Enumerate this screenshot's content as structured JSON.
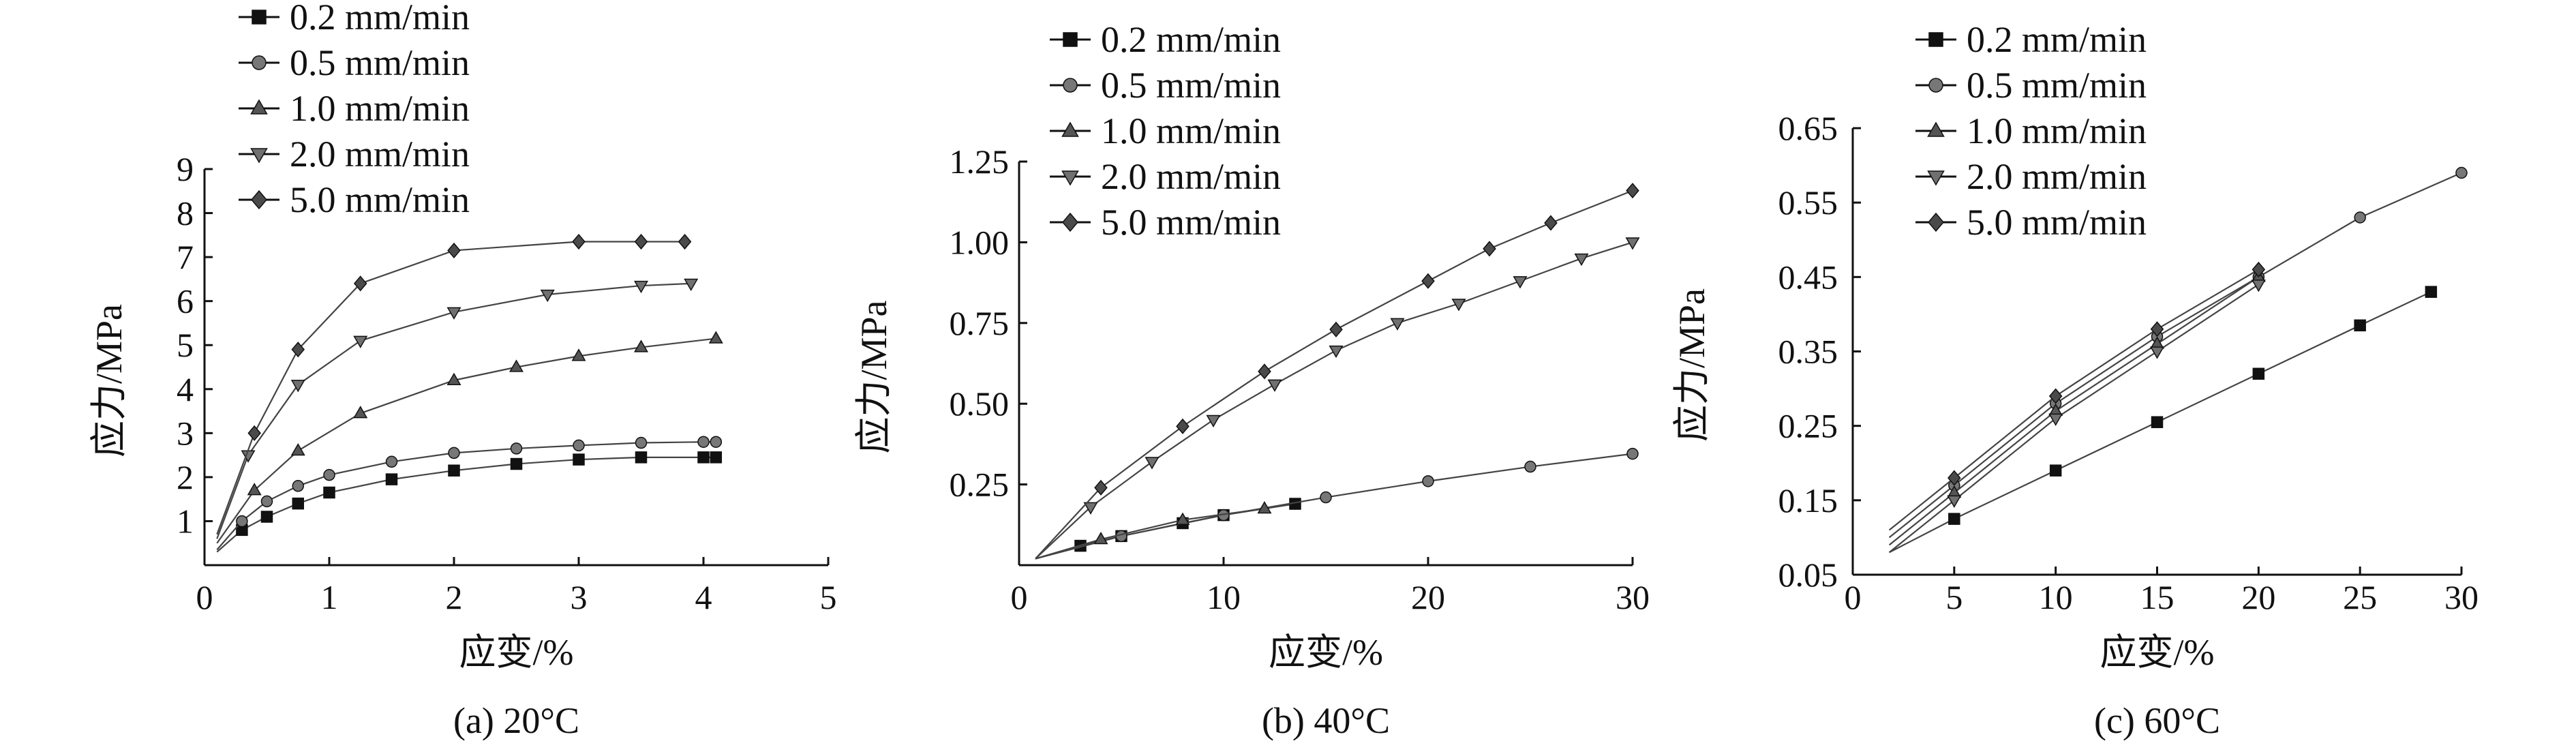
{
  "chart_data": [
    {
      "type": "line",
      "caption": "(a) 20°C",
      "xlabel": "应变/%",
      "ylabel": "应力/MPa",
      "xlim": [
        0,
        5
      ],
      "ylim": [
        0,
        9
      ],
      "xticks": [
        "0",
        "1",
        "2",
        "3",
        "4",
        "5"
      ],
      "yticks": [
        "1",
        "2",
        "3",
        "4",
        "5",
        "6",
        "7",
        "8",
        "9"
      ],
      "legend": "top-left",
      "series": [
        {
          "name": "0.2 mm/min",
          "marker": "square",
          "x": [
            0.1,
            0.3,
            0.5,
            0.75,
            1.0,
            1.5,
            2.0,
            2.5,
            3.0,
            3.5,
            4.0,
            4.1
          ],
          "y": [
            0.3,
            0.8,
            1.1,
            1.4,
            1.65,
            1.95,
            2.15,
            2.3,
            2.4,
            2.45,
            2.45,
            2.45
          ]
        },
        {
          "name": "0.5 mm/min",
          "marker": "circle",
          "x": [
            0.1,
            0.3,
            0.5,
            0.75,
            1.0,
            1.5,
            2.0,
            2.5,
            3.0,
            3.5,
            4.0,
            4.1
          ],
          "y": [
            0.35,
            1.0,
            1.45,
            1.8,
            2.05,
            2.35,
            2.55,
            2.65,
            2.72,
            2.78,
            2.8,
            2.8
          ]
        },
        {
          "name": "1.0 mm/min",
          "marker": "triangle-up",
          "x": [
            0.1,
            0.4,
            0.75,
            1.25,
            2.0,
            2.5,
            3.0,
            3.5,
            4.1
          ],
          "y": [
            0.5,
            1.7,
            2.6,
            3.45,
            4.2,
            4.5,
            4.75,
            4.95,
            5.15
          ]
        },
        {
          "name": "2.0 mm/min",
          "marker": "triangle-down",
          "x": [
            0.1,
            0.35,
            0.75,
            1.25,
            2.0,
            2.75,
            3.5,
            3.9
          ],
          "y": [
            0.6,
            2.5,
            4.1,
            5.1,
            5.75,
            6.15,
            6.35,
            6.4
          ]
        },
        {
          "name": "5.0 mm/min",
          "marker": "diamond",
          "x": [
            0.1,
            0.4,
            0.75,
            1.25,
            2.0,
            3.0,
            3.5,
            3.85
          ],
          "y": [
            0.7,
            3.0,
            4.9,
            6.4,
            7.15,
            7.35,
            7.35,
            7.35
          ]
        }
      ]
    },
    {
      "type": "line",
      "caption": "(b) 40°C",
      "xlabel": "应变/%",
      "ylabel": "应力/MPa",
      "xlim": [
        0,
        30
      ],
      "ylim": [
        0,
        1.25
      ],
      "xticks": [
        "0",
        "10",
        "20",
        "30"
      ],
      "yticks": [
        "0.25",
        "0.50",
        "0.75",
        "1.00",
        "1.25"
      ],
      "legend": "top-left",
      "series": [
        {
          "name": "0.2 mm/min",
          "marker": "square",
          "x": [
            0.8,
            3,
            5,
            8,
            10,
            13.5
          ],
          "y": [
            0.02,
            0.06,
            0.09,
            0.13,
            0.155,
            0.19
          ]
        },
        {
          "name": "0.5 mm/min",
          "marker": "circle",
          "x": [
            0.8,
            5,
            10,
            15,
            20,
            25,
            30
          ],
          "y": [
            0.02,
            0.09,
            0.155,
            0.21,
            0.26,
            0.305,
            0.345
          ]
        },
        {
          "name": "1.0 mm/min",
          "marker": "triangle-up",
          "x": [
            0.8,
            4,
            8,
            12
          ],
          "y": [
            0.02,
            0.08,
            0.14,
            0.175
          ]
        },
        {
          "name": "2.0 mm/min",
          "marker": "triangle-down",
          "x": [
            0.8,
            3.5,
            6.5,
            9.5,
            12.5,
            15.5,
            18.5,
            21.5,
            24.5,
            27.5,
            30
          ],
          "y": [
            0.02,
            0.18,
            0.32,
            0.45,
            0.56,
            0.665,
            0.75,
            0.81,
            0.88,
            0.95,
            1.0
          ]
        },
        {
          "name": "5.0 mm/min",
          "marker": "diamond",
          "x": [
            0.8,
            4,
            8,
            12,
            15.5,
            20,
            23,
            26,
            30
          ],
          "y": [
            0.02,
            0.24,
            0.43,
            0.6,
            0.73,
            0.88,
            0.98,
            1.06,
            1.16
          ]
        }
      ]
    },
    {
      "type": "line",
      "caption": "(c) 60°C",
      "xlabel": "应变/%",
      "ylabel": "应力/MPa",
      "xlim": [
        0,
        30
      ],
      "ylim": [
        0.05,
        0.65
      ],
      "xticks": [
        "0",
        "5",
        "10",
        "15",
        "20",
        "25",
        "30"
      ],
      "yticks": [
        "0.05",
        "0.15",
        "0.25",
        "0.35",
        "0.45",
        "0.55",
        "0.65"
      ],
      "legend": "top-left",
      "series": [
        {
          "name": "0.2 mm/min",
          "marker": "square",
          "x": [
            1.8,
            5,
            10,
            15,
            20,
            25,
            28.5
          ],
          "y": [
            0.08,
            0.125,
            0.19,
            0.255,
            0.32,
            0.385,
            0.43
          ]
        },
        {
          "name": "0.5 mm/min",
          "marker": "circle",
          "x": [
            1.8,
            5,
            10,
            15,
            20,
            25,
            30
          ],
          "y": [
            0.1,
            0.17,
            0.28,
            0.37,
            0.45,
            0.53,
            0.59
          ]
        },
        {
          "name": "1.0 mm/min",
          "marker": "triangle-up",
          "x": [
            1.8,
            5,
            10,
            15,
            20
          ],
          "y": [
            0.09,
            0.16,
            0.27,
            0.36,
            0.45
          ]
        },
        {
          "name": "2.0 mm/min",
          "marker": "triangle-down",
          "x": [
            1.8,
            5,
            10,
            15,
            20
          ],
          "y": [
            0.08,
            0.15,
            0.26,
            0.35,
            0.44
          ]
        },
        {
          "name": "5.0 mm/min",
          "marker": "diamond",
          "x": [
            1.8,
            5,
            10,
            15,
            20
          ],
          "y": [
            0.11,
            0.18,
            0.29,
            0.38,
            0.46
          ]
        }
      ]
    }
  ]
}
